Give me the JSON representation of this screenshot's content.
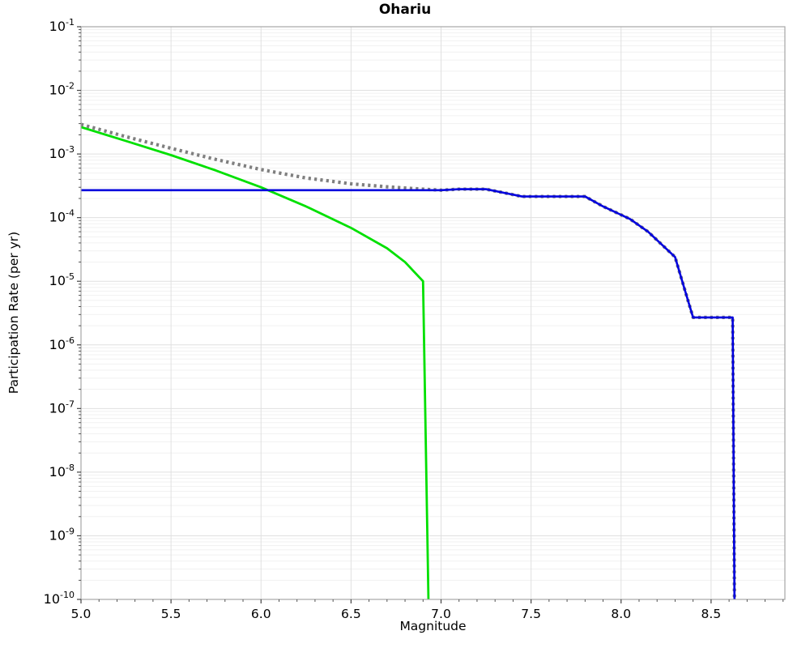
{
  "chart_data": {
    "type": "line",
    "title": "Ohariu",
    "xlabel": "Magnitude",
    "ylabel": "Participation Rate (per yr)",
    "xlim": [
      5.0,
      8.91
    ],
    "ylim_log10": [
      -10,
      -1
    ],
    "x_major_tick_step": 0.5,
    "x_minor_tick_step": 0.1,
    "x_ticks": [
      5.0,
      5.5,
      6.0,
      6.5,
      7.0,
      7.5,
      8.0,
      8.5
    ],
    "y_tick_exponents": [
      -1,
      -2,
      -3,
      -4,
      -5,
      -6,
      -7,
      -8,
      -9,
      -10
    ],
    "grid": "major+log-minor",
    "legend": "none",
    "colors": {
      "green_series": "#00e000",
      "blue_series": "#0000dd",
      "dotted_series": "#7f7f7f",
      "grid_major": "#e0e0e0",
      "grid_minor": "#f1f1f1",
      "spine": "#a6a6a6",
      "tick": "#444444",
      "text": "#000000"
    },
    "series": [
      {
        "name": "series-green",
        "color": "#00e000",
        "style": "solid",
        "width": 2.8,
        "points": [
          [
            5.0,
            0.00265
          ],
          [
            5.25,
            0.0016
          ],
          [
            5.5,
            0.00096
          ],
          [
            5.75,
            0.00055
          ],
          [
            6.0,
            0.0003
          ],
          [
            6.25,
            0.00015
          ],
          [
            6.5,
            6.9e-05
          ],
          [
            6.7,
            3.3e-05
          ],
          [
            6.8,
            2e-05
          ],
          [
            6.9,
            1e-05
          ],
          [
            6.93,
            1e-10
          ]
        ]
      },
      {
        "name": "series-gray-dotted",
        "color": "#7f7f7f",
        "style": "dotted",
        "width": 4.2,
        "points": [
          [
            5.0,
            0.00292
          ],
          [
            5.25,
            0.00187
          ],
          [
            5.5,
            0.00123
          ],
          [
            5.75,
            0.00082
          ],
          [
            6.0,
            0.00057
          ],
          [
            6.25,
            0.00042
          ],
          [
            6.5,
            0.00034
          ],
          [
            6.7,
            0.000305
          ],
          [
            6.9,
            0.00028
          ],
          [
            7.0,
            0.00027
          ],
          [
            7.1,
            0.00028
          ],
          [
            7.25,
            0.00028
          ],
          [
            7.45,
            0.000215
          ],
          [
            7.8,
            0.000215
          ],
          [
            7.9,
            0.00015
          ],
          [
            8.05,
            9.5e-05
          ],
          [
            8.15,
            6e-05
          ],
          [
            8.3,
            2.4e-05
          ],
          [
            8.35,
            8e-06
          ],
          [
            8.4,
            2.7e-06
          ],
          [
            8.62,
            2.7e-06
          ],
          [
            8.63,
            1e-10
          ]
        ]
      },
      {
        "name": "series-blue",
        "color": "#0000dd",
        "style": "solid",
        "width": 2.6,
        "points": [
          [
            5.0,
            0.00027
          ],
          [
            7.0,
            0.00027
          ],
          [
            7.1,
            0.00028
          ],
          [
            7.25,
            0.00028
          ],
          [
            7.45,
            0.000215
          ],
          [
            7.8,
            0.000215
          ],
          [
            7.9,
            0.00015
          ],
          [
            8.05,
            9.5e-05
          ],
          [
            8.15,
            6e-05
          ],
          [
            8.3,
            2.4e-05
          ],
          [
            8.35,
            8e-06
          ],
          [
            8.4,
            2.7e-06
          ],
          [
            8.62,
            2.7e-06
          ],
          [
            8.63,
            1e-10
          ]
        ]
      }
    ]
  }
}
